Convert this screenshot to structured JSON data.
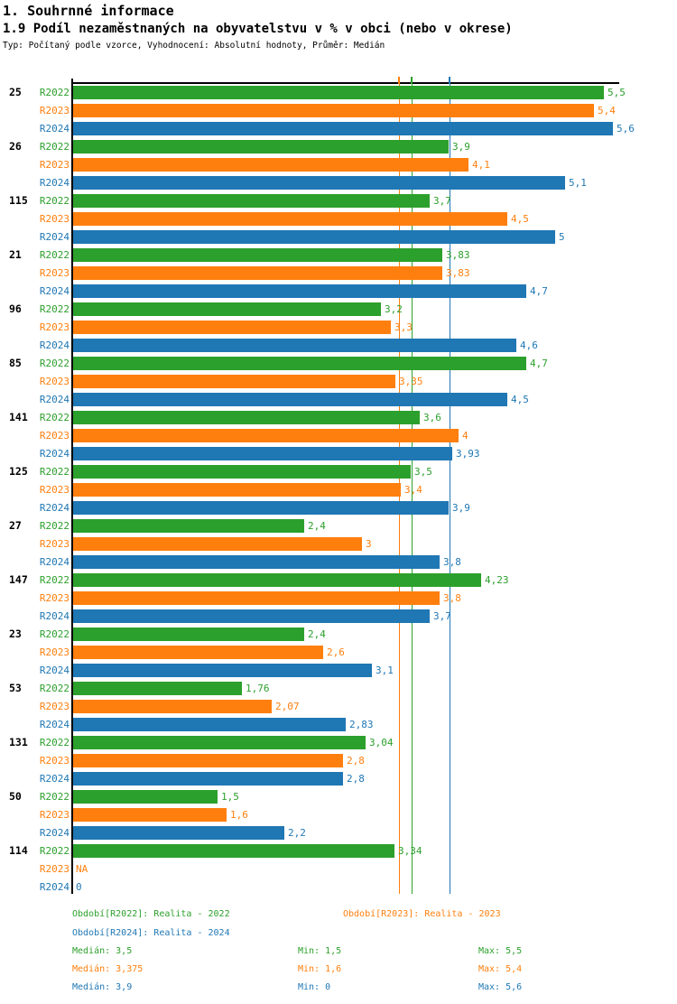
{
  "header": {
    "title": "1. Souhrnné informace",
    "subtitle": "1.9 Podíl nezaměstnaných na obyvatelstvu v % v obci (nebo v okrese)",
    "meta": "Typ: Počítaný podle vzorce, Vyhodnocení: Absolutní hodnoty, Průměr: Medián"
  },
  "chart_data": {
    "type": "bar",
    "orientation": "horizontal-grouped",
    "x_origin_label": "0",
    "xlim": [
      0,
      6.12
    ],
    "grid": false,
    "series": [
      "R2022",
      "R2023",
      "R2024"
    ],
    "series_colors": [
      "#2CA02C",
      "#FF7F0E",
      "#1F77B4"
    ],
    "groups": [
      {
        "label": "25",
        "values": [
          5.5,
          5.4,
          5.6
        ],
        "display": [
          "5,5",
          "5,4",
          "5,6"
        ]
      },
      {
        "label": "26",
        "values": [
          3.9,
          4.1,
          5.1
        ],
        "display": [
          "3,9",
          "4,1",
          "5,1"
        ]
      },
      {
        "label": "115",
        "values": [
          3.7,
          4.5,
          5.0
        ],
        "display": [
          "3,7",
          "4,5",
          "5"
        ]
      },
      {
        "label": "21",
        "values": [
          3.83,
          3.83,
          4.7
        ],
        "display": [
          "3,83",
          "3,83",
          "4,7"
        ]
      },
      {
        "label": "96",
        "values": [
          3.2,
          3.3,
          4.6
        ],
        "display": [
          "3,2",
          "3,3",
          "4,6"
        ]
      },
      {
        "label": "85",
        "values": [
          4.7,
          3.35,
          4.5
        ],
        "display": [
          "4,7",
          "3,35",
          "4,5"
        ]
      },
      {
        "label": "141",
        "values": [
          3.6,
          4.0,
          3.93
        ],
        "display": [
          "3,6",
          "4",
          "3,93"
        ]
      },
      {
        "label": "125",
        "values": [
          3.5,
          3.4,
          3.9
        ],
        "display": [
          "3,5",
          "3,4",
          "3,9"
        ]
      },
      {
        "label": "27",
        "values": [
          2.4,
          3.0,
          3.8
        ],
        "display": [
          "2,4",
          "3",
          "3,8"
        ]
      },
      {
        "label": "147",
        "values": [
          4.23,
          3.8,
          3.7
        ],
        "display": [
          "4,23",
          "3,8",
          "3,7"
        ]
      },
      {
        "label": "23",
        "values": [
          2.4,
          2.6,
          3.1
        ],
        "display": [
          "2,4",
          "2,6",
          "3,1"
        ]
      },
      {
        "label": "53",
        "values": [
          1.76,
          2.07,
          2.83
        ],
        "display": [
          "1,76",
          "2,07",
          "2,83"
        ]
      },
      {
        "label": "131",
        "values": [
          3.04,
          2.8,
          2.8
        ],
        "display": [
          "3,04",
          "2,8",
          "2,8"
        ]
      },
      {
        "label": "50",
        "values": [
          1.5,
          1.6,
          2.2
        ],
        "display": [
          "1,5",
          "1,6",
          "2,2"
        ]
      },
      {
        "label": "114",
        "values": [
          3.34,
          null,
          0
        ],
        "display": [
          "3,34",
          "NA",
          "0"
        ]
      }
    ],
    "median_lines": [
      {
        "series": "R2022",
        "value": 3.5,
        "color": "#2CA02C"
      },
      {
        "series": "R2023",
        "value": 3.375,
        "color": "#FF7F0E"
      },
      {
        "series": "R2024",
        "value": 3.9,
        "color": "#1F77B4"
      }
    ]
  },
  "footer": {
    "legend": [
      {
        "text": "Období[R2022]: Realita - 2022",
        "color": "#2CA02C",
        "row": 0,
        "col": 0
      },
      {
        "text": "Období[R2023]: Realita - 2023",
        "color": "#FF7F0E",
        "row": 0,
        "col": 1
      },
      {
        "text": "Období[R2024]: Realita - 2024",
        "color": "#1F77B4",
        "row": 1,
        "col": 0
      }
    ],
    "stats": [
      {
        "color": "#2CA02C",
        "median": "Medián: 3,5",
        "min": "Min: 1,5",
        "max": "Max: 5,5"
      },
      {
        "color": "#FF7F0E",
        "median": "Medián: 3,375",
        "min": "Min: 1,6",
        "max": "Max: 5,4"
      },
      {
        "color": "#1F77B4",
        "median": "Medián: 3,9",
        "min": "Min: 0",
        "max": "Max: 5,6"
      }
    ]
  }
}
